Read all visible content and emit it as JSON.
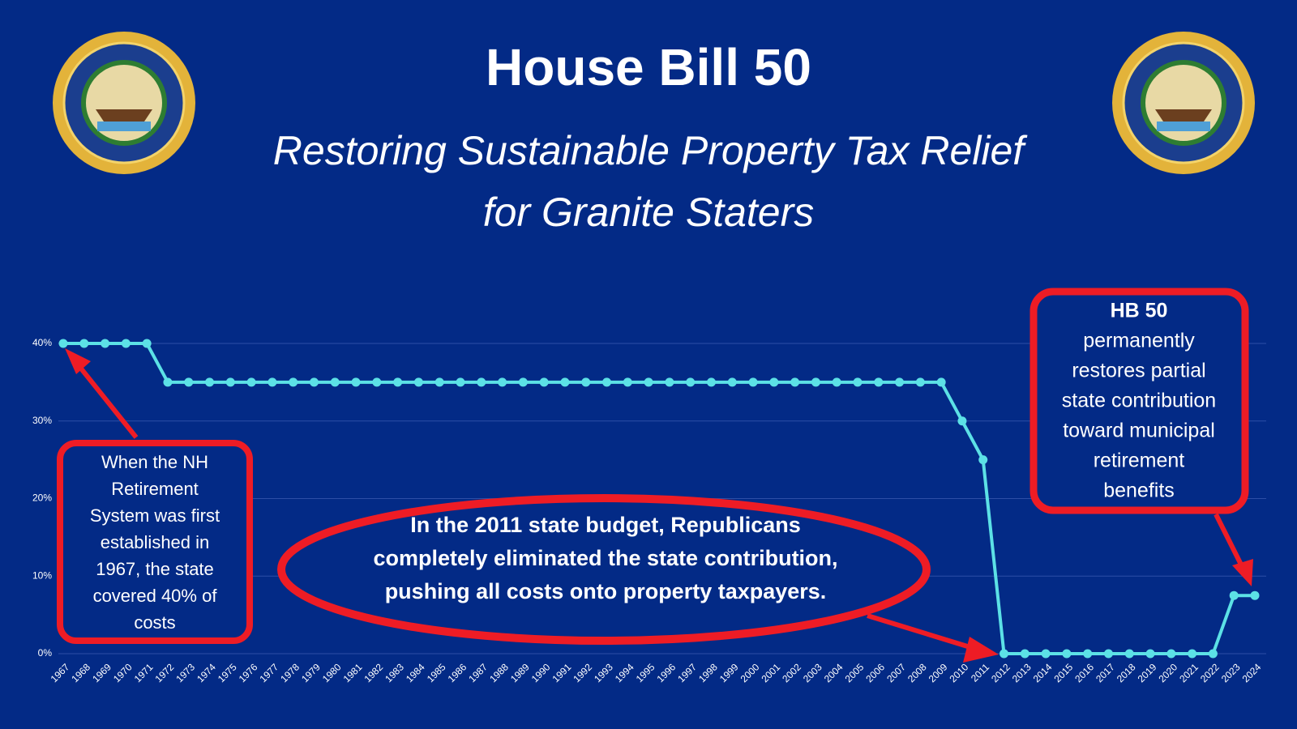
{
  "chart_data": {
    "type": "line",
    "title": "House Bill 50",
    "subtitle": [
      "Restoring Sustainable Property Tax Relief",
      "for Granite Staters"
    ],
    "categories": [
      "1967",
      "1968",
      "1969",
      "1970",
      "1971",
      "1972",
      "1973",
      "1974",
      "1975",
      "1976",
      "1977",
      "1978",
      "1979",
      "1980",
      "1981",
      "1982",
      "1983",
      "1984",
      "1985",
      "1986",
      "1987",
      "1988",
      "1989",
      "1990",
      "1991",
      "1992",
      "1993",
      "1994",
      "1995",
      "1996",
      "1997",
      "1998",
      "1999",
      "2000",
      "2001",
      "2002",
      "2003",
      "2004",
      "2005",
      "2006",
      "2007",
      "2008",
      "2009",
      "2010",
      "2011",
      "2012",
      "2013",
      "2014",
      "2015",
      "2016",
      "2017",
      "2018",
      "2019",
      "2020",
      "2021",
      "2022",
      "2023",
      "2024"
    ],
    "series": [
      {
        "color": "#5ce1e6",
        "values": [
          40,
          40,
          40,
          40,
          40,
          35,
          35,
          35,
          35,
          35,
          35,
          35,
          35,
          35,
          35,
          35,
          35,
          35,
          35,
          35,
          35,
          35,
          35,
          35,
          35,
          35,
          35,
          35,
          35,
          35,
          35,
          35,
          35,
          35,
          35,
          35,
          35,
          35,
          35,
          35,
          35,
          35,
          35,
          30,
          25,
          0,
          0,
          0,
          0,
          0,
          0,
          0,
          0,
          0,
          0,
          0,
          7.5,
          7.5
        ]
      }
    ],
    "ylim": [
      0,
      40
    ],
    "yticks": [
      {
        "value": 0,
        "label": "0%"
      },
      {
        "value": 10,
        "label": "10%"
      },
      {
        "value": 20,
        "label": "20%"
      },
      {
        "value": 30,
        "label": "30%"
      },
      {
        "value": 40,
        "label": "40%"
      }
    ],
    "grid": true,
    "annotations": {
      "left_box": [
        "When the NH",
        "Retirement",
        "System was first",
        "established in",
        "1967, the state",
        "covered 40% of",
        "costs"
      ],
      "center_ellipse": [
        "In the 2011 state budget, Republicans",
        "completely eliminated the state contribution,",
        "pushing all costs onto property taxpayers."
      ],
      "right_box_heading": "HB 50",
      "right_box": [
        "permanently",
        "restores partial",
        "state contribution",
        "toward municipal",
        "retirement",
        "benefits"
      ]
    }
  }
}
